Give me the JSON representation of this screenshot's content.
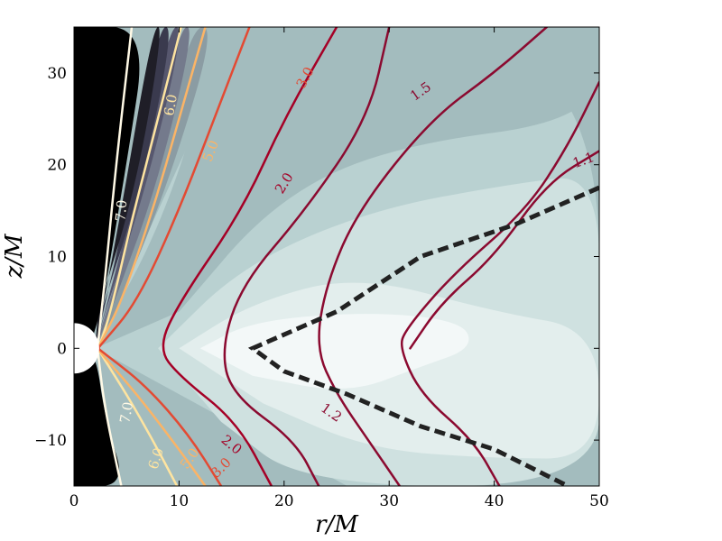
{
  "chart_data": {
    "type": "contour",
    "xlabel": "r/M",
    "ylabel": "z/M",
    "xlim": [
      0,
      50
    ],
    "ylim": [
      -15,
      35
    ],
    "x_ticks": [
      0,
      10,
      20,
      30,
      40,
      50
    ],
    "y_ticks": [
      -10,
      0,
      10,
      20,
      30
    ],
    "x_tick_labels": [
      "0",
      "10",
      "20",
      "30",
      "40",
      "50"
    ],
    "y_tick_labels": [
      "−10",
      "0",
      "10",
      "20",
      "30"
    ],
    "grid": false,
    "legend": "none",
    "horizon": {
      "r": 0,
      "z": 0,
      "radius": 2
    },
    "filled_contours": {
      "description_colors": [
        "#000000",
        "#1f1e27",
        "#3a3a4e",
        "#57576e",
        "#747a8c",
        "#8b9ca3",
        "#a3bcbe",
        "#b9d1d1",
        "#cfe1e0",
        "#e3eeed",
        "#f3f8f8"
      ],
      "bands": [
        {
          "color": "#b9d1d1",
          "points": [
            [
              2,
              0
            ],
            [
              10,
              20
            ],
            [
              16,
              35
            ],
            [
              50,
              35
            ],
            [
              50,
              -15
            ],
            [
              26,
              -15
            ]
          ]
        },
        {
          "color": "#cfe1e0",
          "points": [
            [
              8,
              0
            ],
            [
              16,
              9
            ],
            [
              28,
              15
            ],
            [
              42,
              18
            ],
            [
              50,
              19
            ],
            [
              50,
              0
            ],
            [
              50,
              -15
            ],
            [
              22,
              -15
            ],
            [
              14,
              -8
            ]
          ]
        },
        {
          "color": "#e3eeed",
          "points": [
            [
              10,
              0
            ],
            [
              17,
              5
            ],
            [
              27,
              8
            ],
            [
              40,
              4
            ],
            [
              50,
              2
            ],
            [
              50,
              -12
            ],
            [
              40,
              -12
            ],
            [
              28,
              -11
            ],
            [
              18,
              -6
            ]
          ]
        },
        {
          "color": "#f3f8f8",
          "points": [
            [
              12,
              0
            ],
            [
              17,
              3
            ],
            [
              28,
              4
            ],
            [
              37,
              3
            ],
            [
              38,
              0
            ],
            [
              33,
              -2
            ],
            [
              26,
              -5
            ],
            [
              17,
              -3
            ]
          ]
        },
        {
          "color": "#a3bcbe",
          "points": [
            [
              2,
              0
            ],
            [
              9,
              15
            ],
            [
              14,
              35
            ],
            [
              50,
              35
            ],
            [
              50,
              25
            ],
            [
              30,
              22
            ],
            [
              19,
              16
            ],
            [
              10,
              4
            ]
          ]
        },
        {
          "color": "#8b9ca3",
          "points": [
            [
              2,
              0
            ],
            [
              7,
              15
            ],
            [
              11,
              35
            ],
            [
              13.5,
              35
            ],
            [
              9,
              18
            ],
            [
              4,
              4
            ]
          ]
        },
        {
          "color": "#747a8c",
          "points": [
            [
              2,
              0
            ],
            [
              6,
              15
            ],
            [
              10,
              35
            ],
            [
              11.5,
              35
            ],
            [
              8,
              18
            ],
            [
              3.5,
              4
            ]
          ]
        },
        {
          "color": "#57576e",
          "points": [
            [
              2,
              0
            ],
            [
              5.5,
              15
            ],
            [
              9,
              35
            ],
            [
              10.5,
              35
            ],
            [
              7,
              18
            ],
            [
              3,
              4
            ]
          ]
        },
        {
          "color": "#3a3a4e",
          "points": [
            [
              2,
              0
            ],
            [
              5,
              15
            ],
            [
              8,
              35
            ],
            [
              9.5,
              35
            ],
            [
              6.5,
              18
            ],
            [
              2.6,
              4
            ]
          ]
        },
        {
          "color": "#1f1e27",
          "points": [
            [
              2,
              0
            ],
            [
              4.5,
              15
            ],
            [
              7.5,
              35
            ],
            [
              8.5,
              35
            ],
            [
              6,
              18
            ],
            [
              2.3,
              4
            ]
          ]
        },
        {
          "color": "#000000",
          "points": [
            [
              0,
              35
            ],
            [
              7,
              35
            ],
            [
              5,
              20
            ],
            [
              2,
              0
            ],
            [
              0,
              0
            ]
          ]
        },
        {
          "color": "#000000",
          "points": [
            [
              0,
              -15
            ],
            [
              5,
              -15
            ],
            [
              3,
              -8
            ],
            [
              2,
              0
            ],
            [
              0,
              0
            ]
          ]
        }
      ]
    },
    "series": [
      {
        "name": "7.0",
        "color": "#fff9e6",
        "points": [
          [
            5.5,
            35
          ],
          [
            4,
            20
          ],
          [
            3,
            8
          ],
          [
            2.3,
            0.8
          ],
          [
            2.3,
            0
          ],
          [
            2.3,
            -0.8
          ],
          [
            3,
            -7
          ],
          [
            4.5,
            -15
          ]
        ]
      },
      {
        "name": "6.0",
        "color": "#fee4a0",
        "points": [
          [
            10.2,
            35
          ],
          [
            8,
            25
          ],
          [
            5.5,
            14
          ],
          [
            3.5,
            4
          ],
          [
            2.5,
            0.5
          ],
          [
            2.3,
            0
          ],
          [
            2.5,
            -0.5
          ],
          [
            5,
            -5
          ],
          [
            7.5,
            -10
          ],
          [
            9.8,
            -15
          ]
        ]
      },
      {
        "name": "5.0",
        "color": "#fbb466",
        "points": [
          [
            12.5,
            35
          ],
          [
            10,
            25
          ],
          [
            7.5,
            15
          ],
          [
            4.5,
            5
          ],
          [
            2.5,
            0.5
          ],
          [
            2.3,
            0
          ],
          [
            2.6,
            -0.6
          ],
          [
            6,
            -5
          ],
          [
            10,
            -11
          ],
          [
            12.5,
            -15
          ]
        ]
      },
      {
        "name": "3.0",
        "color": "#e34a33",
        "points": [
          [
            16.7,
            35
          ],
          [
            14,
            27
          ],
          [
            10,
            15
          ],
          [
            6,
            5
          ],
          [
            2.5,
            0.3
          ],
          [
            2.3,
            0
          ],
          [
            2.6,
            -0.3
          ],
          [
            6.8,
            -4
          ],
          [
            11,
            -9.5
          ],
          [
            14,
            -15
          ]
        ]
      },
      {
        "name": "2.0",
        "color": "#a50026",
        "points": [
          [
            25,
            35
          ],
          [
            20,
            25
          ],
          [
            16,
            15
          ],
          [
            10,
            5
          ],
          [
            8,
            0
          ],
          [
            10,
            -3
          ],
          [
            15.5,
            -8
          ],
          [
            18.8,
            -15
          ]
        ]
      },
      {
        "name": "1.5",
        "color": "#8b0a30",
        "points": [
          [
            30,
            35
          ],
          [
            28,
            25
          ],
          [
            22,
            15
          ],
          [
            16,
            7
          ],
          [
            14,
            0
          ],
          [
            15,
            -5
          ],
          [
            21,
            -10
          ],
          [
            23.3,
            -15
          ]
        ]
      },
      {
        "name": "1.2",
        "color": "#8b0a30",
        "points": [
          [
            45,
            35
          ],
          [
            40,
            30
          ],
          [
            34,
            25
          ],
          [
            27,
            15
          ],
          [
            24,
            7
          ],
          [
            23,
            0
          ],
          [
            25,
            -5
          ],
          [
            28,
            -10
          ],
          [
            31,
            -15
          ]
        ]
      },
      {
        "name": "1.1",
        "color": "#8b0a30",
        "points": [
          [
            50,
            29
          ],
          [
            47,
            22
          ],
          [
            43,
            15
          ],
          [
            36,
            8
          ],
          [
            31.5,
            2
          ],
          [
            31,
            0
          ],
          [
            33,
            -5
          ],
          [
            38,
            -10
          ],
          [
            40.5,
            -15
          ]
        ]
      },
      {
        "name": "1.1b",
        "color": "#8b0a30",
        "points": [
          [
            50,
            21.5
          ],
          [
            45,
            18
          ],
          [
            40,
            10
          ],
          [
            35,
            5
          ],
          [
            32,
            0
          ]
        ]
      }
    ],
    "dashed_boundary": {
      "color": "#222222",
      "points": [
        [
          50,
          17.5
        ],
        [
          42,
          13.5
        ],
        [
          33,
          10
        ],
        [
          25,
          4
        ],
        [
          17,
          0
        ],
        [
          20,
          -2.5
        ],
        [
          26,
          -5
        ],
        [
          33,
          -8.5
        ],
        [
          40,
          -11
        ],
        [
          47,
          -15
        ]
      ]
    },
    "contour_labels": [
      {
        "text": "7.0",
        "x": 4.5,
        "y": 15,
        "color": "#fff9e6",
        "angle": 85
      },
      {
        "text": "6.0",
        "x": 9.2,
        "y": 26.5,
        "color": "#fee4a0",
        "angle": 80
      },
      {
        "text": "5.0",
        "x": 13,
        "y": 21.5,
        "color": "#fbb466",
        "angle": 70
      },
      {
        "text": "3.0",
        "x": 22,
        "y": 29.5,
        "color": "#e34a33",
        "angle": 62
      },
      {
        "text": "2.0",
        "x": 20,
        "y": 18,
        "color": "#a50026",
        "angle": 58
      },
      {
        "text": "1.5",
        "x": 33,
        "y": 28,
        "color": "#8b0a30",
        "angle": 35
      },
      {
        "text": "1.1",
        "x": 48.5,
        "y": 20.5,
        "color": "#8b0a30",
        "angle": 20
      },
      {
        "text": "7.0",
        "x": 5,
        "y": -7,
        "color": "#fff9e6",
        "angle": 80
      },
      {
        "text": "6.0",
        "x": 7.8,
        "y": -12,
        "color": "#fee4a0",
        "angle": 72
      },
      {
        "text": "5.0",
        "x": 11,
        "y": -12,
        "color": "#fbb466",
        "angle": 55
      },
      {
        "text": "3.0",
        "x": 14,
        "y": -13,
        "color": "#e34a33",
        "angle": 45
      },
      {
        "text": "2.0",
        "x": 15,
        "y": -10.5,
        "color": "#a50026",
        "angle": -40
      },
      {
        "text": "1.2",
        "x": 24.5,
        "y": -7,
        "color": "#8b0a30",
        "angle": -35
      }
    ]
  }
}
